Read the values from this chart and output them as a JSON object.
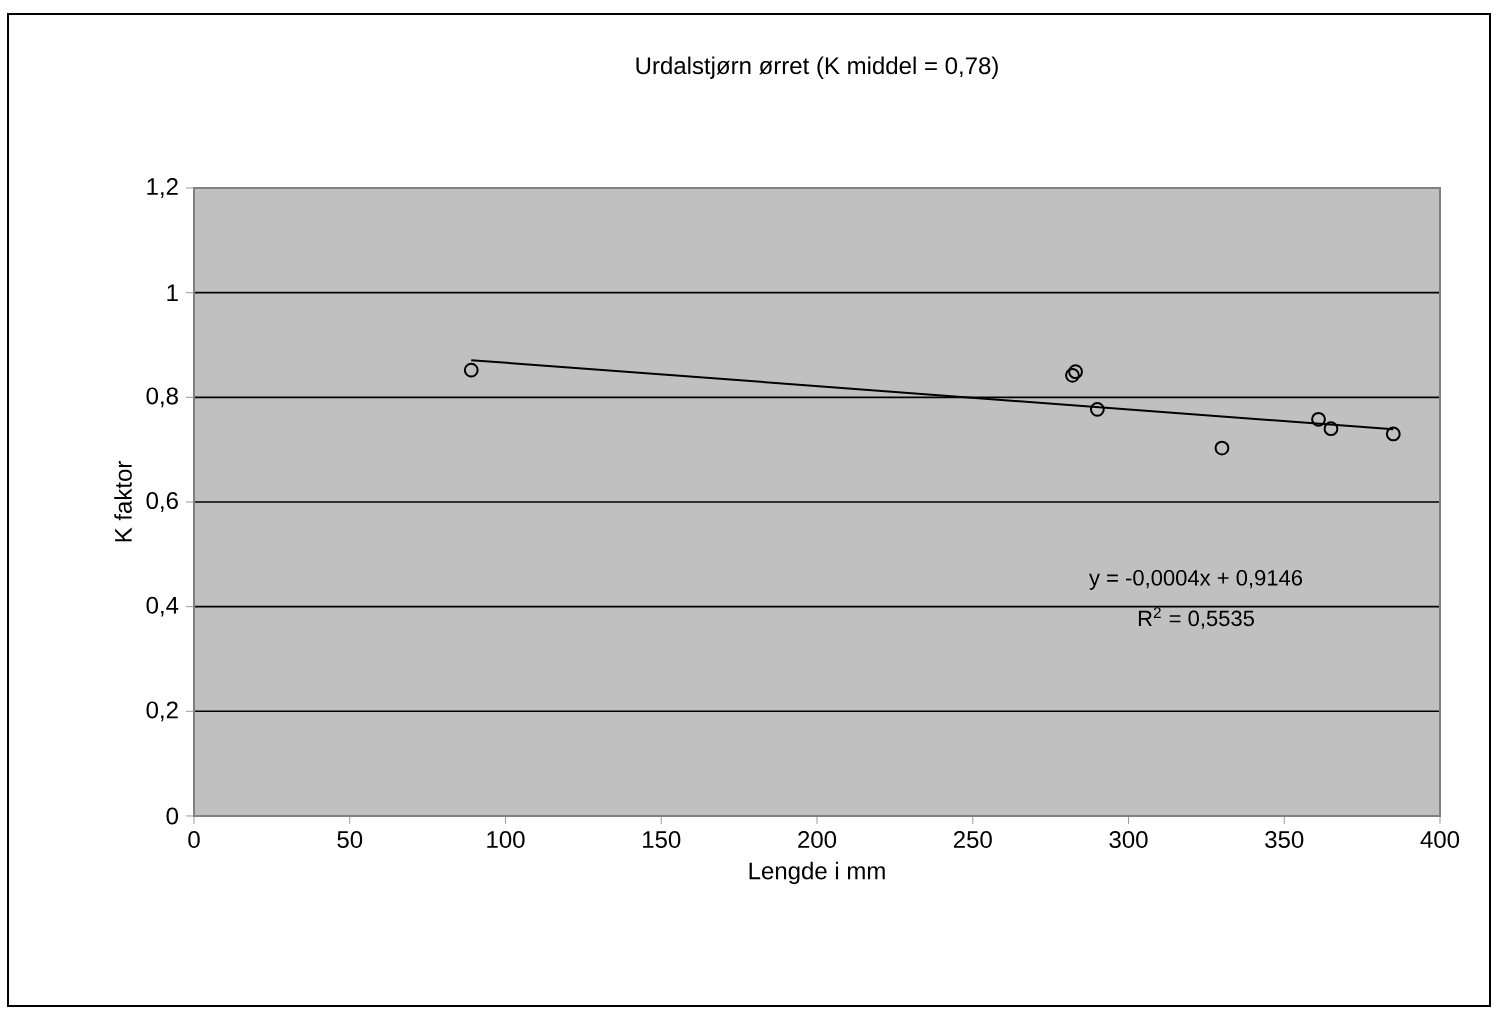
{
  "chart_data": {
    "type": "scatter",
    "title": "Urdalstjørn ørret (K middel = 0,78)",
    "xlabel": "Lengde i mm",
    "ylabel": "K faktor",
    "xlim": [
      0,
      400
    ],
    "ylim": [
      0,
      1.2
    ],
    "xticks": [
      0,
      50,
      100,
      150,
      200,
      250,
      300,
      350,
      400
    ],
    "yticks": [
      0,
      {
        "value": 0.2,
        "label": "0,2"
      },
      {
        "value": 0.4,
        "label": "0,4"
      },
      {
        "value": 0.6,
        "label": "0,6"
      },
      {
        "value": 0.8,
        "label": "0,8"
      },
      1,
      {
        "value": 1.2,
        "label": "1,2"
      }
    ],
    "grid": "y",
    "marker": "circle",
    "series": [
      {
        "color": "#000000",
        "x": [
          89,
          282,
          283,
          290,
          330,
          361,
          365,
          385
        ],
        "values": [
          0.852,
          0.842,
          0.849,
          0.777,
          0.703,
          0.758,
          0.74,
          0.73
        ]
      },
      {
        "type": "line",
        "color": "#000000",
        "marker": "none",
        "x": [
          89,
          385
        ],
        "values": [
          0.871,
          0.739
        ]
      }
    ],
    "annotations": [
      "y = -0,0004x + 0,9146",
      "R$^{2}$ = 0,5535"
    ]
  }
}
